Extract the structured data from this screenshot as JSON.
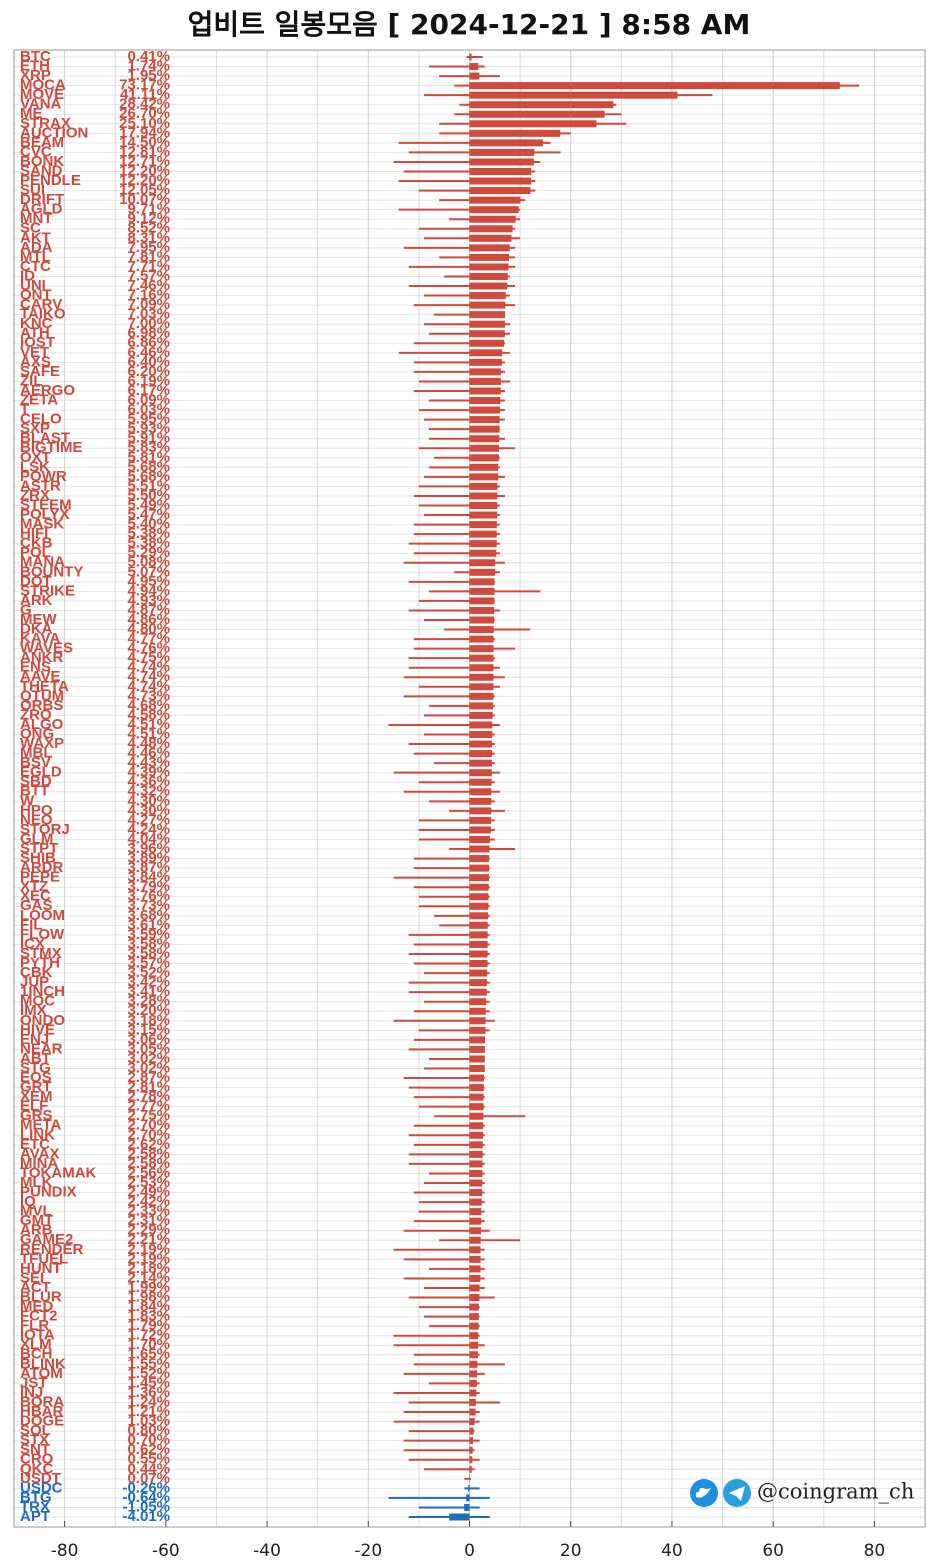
{
  "chart_data": {
    "type": "range-bar",
    "title": "업비트 일봉모음 [ 2024-12-21 ]  8:58 AM",
    "watermark": "@coingram_ch",
    "categories": [
      "BTC",
      "ETH",
      "XRP",
      "MOCA",
      "MOVE",
      "VANA",
      "ME",
      "STRAX",
      "AUCTION",
      "BEAM",
      "CVC",
      "BONK",
      "SAND",
      "PENDLE",
      "SUI",
      "DRIFT",
      "AGLD",
      "MNT",
      "SC",
      "AKT",
      "ADA",
      "MTL",
      "CTC",
      "ID",
      "UNI",
      "ONT",
      "CARV",
      "TAIKO",
      "KNC",
      "ATH",
      "IOST",
      "VET",
      "AXS",
      "SAFE",
      "ZIL",
      "AERGO",
      "ZETA",
      "T",
      "CELO",
      "SXP",
      "BLAST",
      "BIGTIME",
      "OXT",
      "LSK",
      "POWR",
      "ASTR",
      "ZRX",
      "STEEM",
      "POLYX",
      "MASK",
      "HIFI",
      "CKB",
      "POL",
      "MANA",
      "BOUNTY",
      "DOT",
      "STRIKE",
      "ARK",
      "G",
      "MEW",
      "DKA",
      "KAVA",
      "WAVES",
      "ANKR",
      "ENS",
      "AAVE",
      "THETA",
      "QTUM",
      "ORBS",
      "ZRO",
      "ALGO",
      "ONG",
      "WAXP",
      "MBL",
      "BSV",
      "EGLD",
      "SBD",
      "BTT",
      "W",
      "HPO",
      "NEO",
      "STORJ",
      "GLM",
      "STPT",
      "SHIB",
      "ARDR",
      "PEPE",
      "XTZ",
      "XEC",
      "GAS",
      "LOOM",
      "FIL",
      "FLOW",
      "ICX",
      "STMX",
      "PYTH",
      "CBK",
      "JUP",
      "1INCH",
      "MOC",
      "IMX",
      "ONDO",
      "HIVE",
      "ENJ",
      "NEAR",
      "ABT",
      "STG",
      "EOS",
      "GRT",
      "XEM",
      "ELF",
      "GRS",
      "META",
      "LINK",
      "ETC",
      "AVAX",
      "MINA",
      "TOKAMAK",
      "MLK",
      "PUNDIX",
      "IQ",
      "MVL",
      "GMT",
      "ARB",
      "GAME2",
      "RENDER",
      "TFUEL",
      "HUNT",
      "SEI",
      "ACT",
      "BLUR",
      "MED",
      "FCT2",
      "FLR",
      "IOTA",
      "XLM",
      "BCH",
      "BLINK",
      "ATOM",
      "JST",
      "INJ",
      "BORA",
      "HBAR",
      "DOGE",
      "SOL",
      "STX",
      "SNT",
      "CRO",
      "QKC",
      "USDT",
      "USDC",
      "BTG",
      "TRX",
      "APT"
    ],
    "values": [
      0.41,
      1.74,
      1.95,
      73.17,
      41.11,
      28.42,
      26.7,
      25.1,
      17.94,
      14.5,
      12.81,
      12.71,
      12.2,
      12.2,
      12.05,
      10.07,
      9.71,
      9.12,
      8.52,
      8.31,
      7.95,
      7.81,
      7.71,
      7.57,
      7.46,
      7.16,
      7.09,
      7.03,
      7.0,
      6.98,
      6.86,
      6.46,
      6.4,
      6.2,
      6.19,
      6.17,
      6.09,
      6.03,
      5.95,
      5.93,
      5.91,
      5.83,
      5.81,
      5.68,
      5.68,
      5.51,
      5.5,
      5.49,
      5.47,
      5.4,
      5.38,
      5.38,
      5.29,
      5.08,
      5.07,
      4.95,
      4.94,
      4.93,
      4.87,
      4.86,
      4.8,
      4.77,
      4.76,
      4.75,
      4.74,
      4.74,
      4.74,
      4.73,
      4.68,
      4.58,
      4.51,
      4.51,
      4.48,
      4.46,
      4.43,
      4.39,
      4.36,
      4.32,
      4.3,
      4.3,
      4.27,
      4.24,
      4.04,
      3.96,
      3.89,
      3.87,
      3.84,
      3.79,
      3.76,
      3.73,
      3.68,
      3.61,
      3.59,
      3.58,
      3.58,
      3.57,
      3.52,
      3.42,
      3.41,
      3.28,
      3.2,
      3.18,
      3.15,
      3.06,
      3.05,
      3.02,
      3.02,
      2.87,
      2.81,
      2.78,
      2.77,
      2.75,
      2.7,
      2.7,
      2.62,
      2.58,
      2.58,
      2.56,
      2.53,
      2.49,
      2.42,
      2.33,
      2.31,
      2.29,
      2.21,
      2.19,
      2.19,
      2.18,
      2.14,
      1.99,
      1.98,
      1.84,
      1.83,
      1.79,
      1.72,
      1.7,
      1.65,
      1.55,
      1.52,
      1.45,
      1.36,
      1.24,
      1.21,
      1.03,
      0.8,
      0.7,
      0.62,
      0.55,
      0.44,
      0.07,
      -0.26,
      -0.64,
      -1.05,
      -4.01
    ],
    "value_labels": [
      "0.41%",
      "1.74%",
      "1.95%",
      "73.17%",
      "41.11%",
      "28.42%",
      "26.70%",
      "25.10%",
      "17.94%",
      "14.50%",
      "12.81%",
      "12.71%",
      "12.20%",
      "12.20%",
      "12.05%",
      "10.07%",
      "9.71%",
      "9.12%",
      "8.52%",
      "8.31%",
      "7.95%",
      "7.81%",
      "7.71%",
      "7.57%",
      "7.46%",
      "7.16%",
      "7.09%",
      "7.03%",
      "7.00%",
      "6.98%",
      "6.86%",
      "6.46%",
      "6.40%",
      "6.20%",
      "6.19%",
      "6.17%",
      "6.09%",
      "6.03%",
      "5.95%",
      "5.93%",
      "5.91%",
      "5.83%",
      "5.81%",
      "5.68%",
      "5.68%",
      "5.51%",
      "5.50%",
      "5.49%",
      "5.47%",
      "5.40%",
      "5.38%",
      "5.38%",
      "5.29%",
      "5.08%",
      "5.07%",
      "4.95%",
      "4.94%",
      "4.93%",
      "4.87%",
      "4.86%",
      "4.80%",
      "4.77%",
      "4.76%",
      "4.75%",
      "4.74%",
      "4.74%",
      "4.74%",
      "4.73%",
      "4.68%",
      "4.58%",
      "4.51%",
      "4.51%",
      "4.48%",
      "4.46%",
      "4.43%",
      "4.39%",
      "4.36%",
      "4.32%",
      "4.30%",
      "4.30%",
      "4.27%",
      "4.24%",
      "4.04%",
      "3.96%",
      "3.89%",
      "3.87%",
      "3.84%",
      "3.79%",
      "3.76%",
      "3.73%",
      "3.68%",
      "3.61%",
      "3.59%",
      "3.58%",
      "3.58%",
      "3.57%",
      "3.52%",
      "3.42%",
      "3.41%",
      "3.28%",
      "3.20%",
      "3.18%",
      "3.15%",
      "3.06%",
      "3.05%",
      "3.02%",
      "3.02%",
      "2.87%",
      "2.81%",
      "2.78%",
      "2.77%",
      "2.75%",
      "2.70%",
      "2.70%",
      "2.62%",
      "2.58%",
      "2.58%",
      "2.56%",
      "2.53%",
      "2.49%",
      "2.42%",
      "2.33%",
      "2.31%",
      "2.29%",
      "2.21%",
      "2.19%",
      "2.19%",
      "2.18%",
      "2.14%",
      "1.99%",
      "1.98%",
      "1.84%",
      "1.83%",
      "1.79%",
      "1.72%",
      "1.70%",
      "1.65%",
      "1.55%",
      "1.52%",
      "1.45%",
      "1.36%",
      "1.24%",
      "1.21%",
      "1.03%",
      "0.80%",
      "0.70%",
      "0.62%",
      "0.55%",
      "0.44%",
      "0.07%",
      "-0.26%",
      "-0.64%",
      "-1.05%",
      "-4.01%"
    ],
    "low": [
      -0.6,
      -8,
      -6,
      -3,
      -9,
      -2,
      -3,
      -6,
      -6,
      -14,
      -12,
      -15,
      -13,
      -14,
      -10,
      -6,
      -14,
      -4,
      -10,
      -9,
      -13,
      -6,
      -12,
      -5,
      -12,
      -9,
      -11,
      -7,
      -9,
      -8,
      -11,
      -14,
      -11,
      -11,
      -10,
      -11,
      -8,
      -10,
      -9,
      -8,
      -8,
      -10,
      -7,
      -8,
      -9,
      -10,
      -11,
      -10,
      -9,
      -11,
      -11,
      -12,
      -11,
      -13,
      -3,
      -12,
      -8,
      -10,
      -12,
      -9,
      -5,
      -11,
      -11,
      -12,
      -12,
      -13,
      -10,
      -13,
      -8,
      -9,
      -16,
      -9,
      -12,
      -11,
      -7,
      -15,
      -10,
      -13,
      -8,
      -4,
      -10,
      -10,
      -10,
      -4,
      -11,
      -11,
      -15,
      -11,
      -10,
      -10,
      -7,
      -6,
      -12,
      -11,
      -12,
      -11,
      -9,
      -12,
      -12,
      -9,
      -11,
      -15,
      -10,
      -11,
      -12,
      -8,
      -9,
      -13,
      -12,
      -11,
      -10,
      -7,
      -11,
      -12,
      -11,
      -12,
      -12,
      -8,
      -9,
      -11,
      -10,
      -10,
      -11,
      -13,
      -6,
      -15,
      -13,
      -8,
      -13,
      -9,
      -12,
      -10,
      -9,
      -8,
      -15,
      -15,
      -11,
      -11,
      -13,
      -8,
      -15,
      -12,
      -13,
      -15,
      -12,
      -13,
      -13,
      -12,
      -9,
      -1,
      -1,
      -16,
      -10,
      -12
    ],
    "high": [
      2.6,
      3,
      6,
      77,
      48,
      29,
      30,
      31,
      20,
      16,
      18,
      14,
      13,
      13,
      13,
      11,
      10,
      10,
      9,
      10,
      9,
      9,
      9,
      8,
      9,
      8,
      9,
      7,
      8,
      8,
      7,
      8,
      7,
      7,
      8,
      7,
      7,
      7,
      7,
      6,
      7,
      9,
      6,
      6,
      7,
      6,
      7,
      6,
      6,
      6,
      6,
      6,
      6,
      7,
      6,
      5,
      14,
      5,
      6,
      5,
      12,
      5,
      9,
      5,
      6,
      7,
      6,
      5,
      5,
      5,
      6,
      5,
      5,
      5,
      5,
      6,
      5,
      6,
      5,
      7,
      5,
      5,
      5,
      9,
      4,
      4,
      4,
      4,
      4,
      4,
      4,
      4,
      4,
      4,
      4,
      4,
      4,
      4,
      4,
      4,
      4,
      5,
      4,
      3,
      3,
      3,
      3,
      3,
      3,
      3,
      3,
      11,
      3,
      3,
      3,
      3,
      3,
      3,
      3,
      3,
      3,
      3,
      3,
      4,
      10,
      3,
      3,
      3,
      3,
      3,
      5,
      2,
      2,
      2,
      2,
      3,
      2,
      7,
      3,
      2,
      2,
      6,
      2,
      2,
      1,
      2,
      1,
      2,
      1,
      0.3,
      2,
      4,
      2,
      4
    ],
    "colors": {
      "positive": "#cf4a3c",
      "negative": "#1f6bbf"
    },
    "xlim": [
      -90,
      90
    ],
    "xticks": [
      -80,
      -60,
      -40,
      -20,
      0,
      20,
      40,
      60,
      80
    ],
    "xminor": [
      -90,
      -70,
      -50,
      -30,
      -10,
      10,
      30,
      50,
      70,
      90
    ],
    "grid": true
  }
}
